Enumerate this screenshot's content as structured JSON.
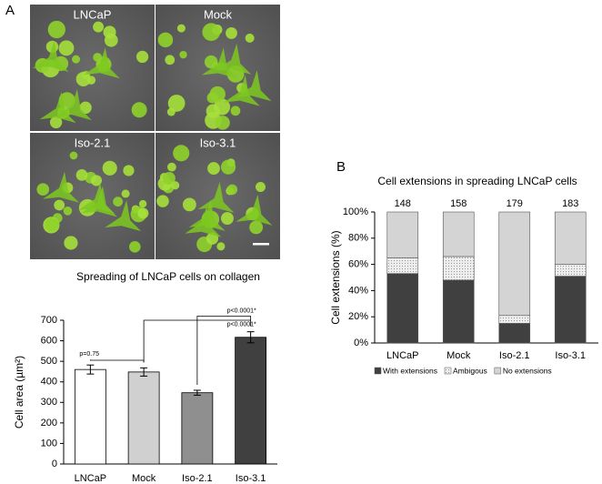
{
  "panel_labels": [
    "A",
    "B"
  ],
  "images": {
    "labels": [
      "LNCaP",
      "Mock",
      "Iso-2.1",
      "Iso-3.1"
    ]
  },
  "chart_data": [
    {
      "type": "bar",
      "title": "Spreading of LNCaP cells on collagen",
      "y_label": "Cell area (µm²)",
      "categories": [
        "LNCaP",
        "Mock",
        "Iso-2.1",
        "Iso-3.1"
      ],
      "values": [
        460,
        448,
        347,
        617
      ],
      "errors": [
        22,
        20,
        12,
        27
      ],
      "colors": [
        "#ffffff",
        "#d0d0d0",
        "#8f8f8f",
        "#404040"
      ],
      "ylim": [
        0,
        700
      ],
      "yticks": [
        0,
        100,
        200,
        300,
        400,
        500,
        600,
        700
      ],
      "annotations": [
        "p=0.75",
        "p<0.0001*",
        "p<0.0001*"
      ]
    },
    {
      "type": "stacked-bar",
      "title": "Cell extensions in spreading LNCaP cells",
      "y_label": "Cell extensions (%)",
      "categories": [
        "LNCaP",
        "Mock",
        "Iso-2.1",
        "Iso-3.1"
      ],
      "counts": [
        148,
        158,
        179,
        183
      ],
      "series": [
        {
          "name": "With extensions",
          "color": "#404040",
          "values": [
            53,
            48,
            15,
            51
          ]
        },
        {
          "name": "Ambigous",
          "color": "#e4e4e4",
          "values": [
            12,
            18,
            6,
            9
          ]
        },
        {
          "name": "No extensions",
          "color": "#d4d4d4",
          "values": [
            35,
            34,
            79,
            40
          ]
        }
      ],
      "ylim": [
        0,
        100
      ],
      "yticks": [
        {
          "value": 0,
          "label": "0%"
        },
        {
          "value": 20,
          "label": "20%"
        },
        {
          "value": 40,
          "label": "40%"
        },
        {
          "value": 60,
          "label": "60%"
        },
        {
          "value": 80,
          "label": "80%"
        },
        {
          "value": 100,
          "label": "100%"
        }
      ],
      "legend": "bottom"
    }
  ]
}
